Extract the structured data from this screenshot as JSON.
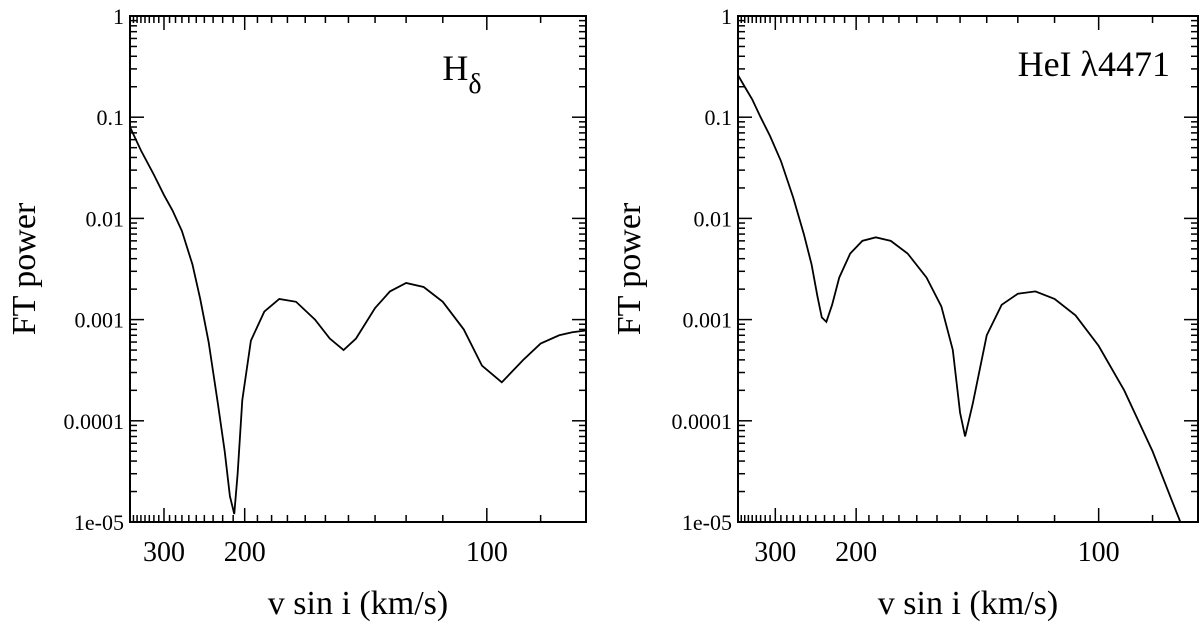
{
  "chart_data": [
    {
      "type": "line",
      "title": "Hδ",
      "title_main": "H",
      "title_sub": "δ",
      "xlabel": "v sin i (km/s)",
      "ylabel": "FT power",
      "xaxis": "reciprocal",
      "yscale": "log",
      "xlim": [
        380,
        83
      ],
      "ylim": [
        1e-05,
        1
      ],
      "xticks": [
        300,
        200,
        100
      ],
      "yticks": [
        1,
        0.1,
        0.01,
        0.001,
        0.0001,
        1e-05
      ],
      "ytick_labels": [
        "1",
        "0.1",
        "0.01",
        "0.001",
        "0.0001",
        "1e-05"
      ],
      "grid": false,
      "series": [
        {
          "x": [
            380,
            350,
            320,
            300,
            285,
            270,
            255,
            245,
            235,
            225,
            218,
            213,
            209,
            206,
            202,
            195,
            185,
            175,
            165,
            155,
            148,
            142,
            137,
            130,
            125,
            120,
            115,
            110,
            105,
            101,
            97,
            93,
            90,
            87,
            85,
            83
          ],
          "y": [
            0.08,
            0.047,
            0.027,
            0.017,
            0.012,
            0.0075,
            0.0035,
            0.0016,
            0.0006,
            0.00015,
            5e-05,
            1.8e-05,
            1.2e-05,
            3e-05,
            0.00016,
            0.00062,
            0.0012,
            0.0016,
            0.0015,
            0.001,
            0.00065,
            0.0005,
            0.00065,
            0.0013,
            0.0019,
            0.0023,
            0.0021,
            0.0015,
            0.0008,
            0.00035,
            0.00024,
            0.0004,
            0.00058,
            0.0007,
            0.00075,
            0.00078
          ]
        }
      ]
    },
    {
      "type": "line",
      "title": "HeI λ4471",
      "title_main": "HeI λ4471",
      "title_sub": "",
      "xlabel": "v sin i (km/s)",
      "ylabel": "FT power",
      "xaxis": "reciprocal",
      "yscale": "log",
      "xlim": [
        390,
        83
      ],
      "ylim": [
        1e-05,
        1
      ],
      "xticks": [
        300,
        200,
        100
      ],
      "yticks": [
        1,
        0.1,
        0.01,
        0.001,
        0.0001,
        1e-05
      ],
      "ytick_labels": [
        "1",
        "0.1",
        "0.01",
        "0.001",
        "0.0001",
        "1e-05"
      ],
      "grid": false,
      "series": [
        {
          "x": [
            390,
            370,
            350,
            330,
            310,
            290,
            270,
            255,
            245,
            238,
            233,
            228,
            222,
            215,
            205,
            195,
            185,
            175,
            165,
            155,
            148,
            143,
            140,
            138,
            135,
            130,
            125,
            120,
            115,
            110,
            105,
            100,
            95,
            90,
            87,
            85
          ],
          "y": [
            0.26,
            0.2,
            0.15,
            0.1,
            0.065,
            0.037,
            0.016,
            0.007,
            0.0035,
            0.0017,
            0.00105,
            0.00095,
            0.0014,
            0.0026,
            0.0045,
            0.006,
            0.0065,
            0.006,
            0.0045,
            0.0026,
            0.00135,
            0.0005,
            0.00012,
            7e-05,
            0.00015,
            0.0007,
            0.0014,
            0.0018,
            0.0019,
            0.0016,
            0.0011,
            0.00055,
            0.0002,
            5e-05,
            1.7e-05,
            8e-06
          ]
        }
      ]
    }
  ]
}
